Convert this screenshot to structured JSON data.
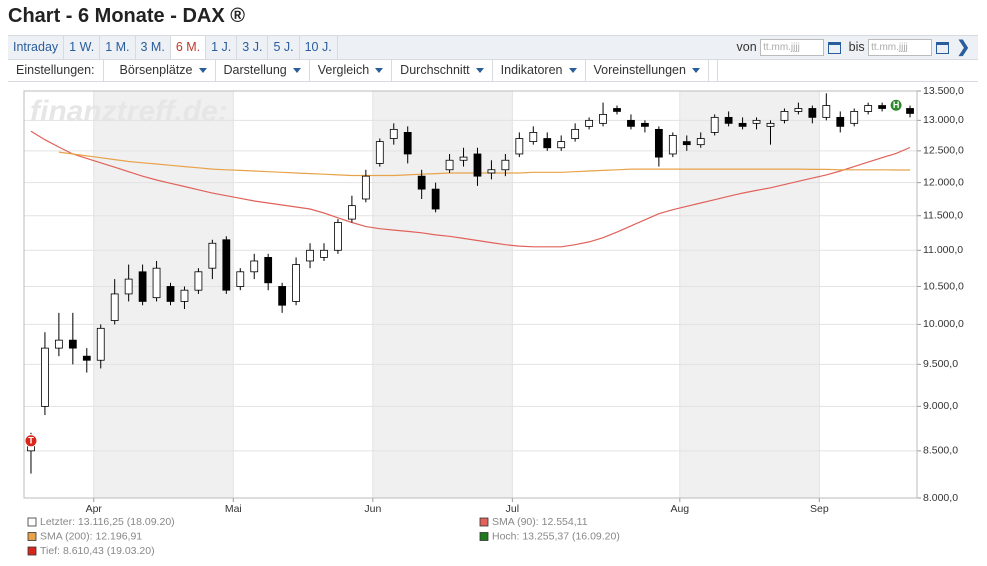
{
  "header": {
    "title": "Chart - 6 Monate - DAX ®"
  },
  "toolbar": {
    "periods": [
      "Intraday",
      "1 W.",
      "1 M.",
      "3 M.",
      "6 M.",
      "1 J.",
      "3 J.",
      "5 J.",
      "10 J."
    ],
    "active_period": "6 M.",
    "from_label": "von",
    "to_label": "bis",
    "date_placeholder": "tt.mm.jjjj",
    "settings_label": "Einstellungen:",
    "menus": [
      "Börsenplätze",
      "Darstellung",
      "Vergleich",
      "Durchschnitt",
      "Indikatoren",
      "Voreinstellungen"
    ]
  },
  "chart_data": {
    "type": "candlestick",
    "watermark": "finanztreff.de:",
    "categories": [
      null,
      null,
      null,
      null,
      null,
      "Apr",
      null,
      null,
      null,
      null,
      null,
      null,
      null,
      null,
      null,
      "Mai",
      null,
      null,
      null,
      null,
      null,
      null,
      null,
      null,
      null,
      "Jun",
      null,
      null,
      null,
      null,
      null,
      null,
      null,
      null,
      null,
      "Jul",
      null,
      null,
      null,
      null,
      null,
      null,
      null,
      null,
      null,
      null,
      null,
      "Aug",
      null,
      null,
      null,
      null,
      null,
      null,
      null,
      null,
      null,
      "Sep",
      null,
      null,
      null,
      null,
      null,
      null
    ],
    "open": [
      8500,
      9000,
      9700,
      9800,
      9600,
      9550,
      10050,
      10400,
      10700,
      10350,
      10500,
      10300,
      10450,
      10750,
      11150,
      10500,
      10700,
      10900,
      10500,
      10300,
      10850,
      10900,
      11000,
      11450,
      11750,
      12300,
      12700,
      12800,
      12100,
      11900,
      12200,
      12350,
      12450,
      12150,
      12200,
      12450,
      12650,
      12700,
      12550,
      12700,
      12900,
      12950,
      13200,
      13000,
      12950,
      12850,
      12450,
      12650,
      12600,
      12800,
      13050,
      12950,
      12950,
      12900,
      13000,
      13150,
      13200,
      13050,
      13050,
      12950,
      13150,
      13250,
      13200,
      13200
    ],
    "high": [
      8700,
      9900,
      10150,
      10150,
      9700,
      10000,
      10600,
      10800,
      10800,
      10850,
      10550,
      10500,
      10750,
      11150,
      11200,
      10750,
      10950,
      10950,
      10550,
      10900,
      11100,
      11100,
      11450,
      11800,
      12200,
      12700,
      12950,
      12900,
      12200,
      12000,
      12450,
      12550,
      12550,
      12350,
      12450,
      12800,
      12900,
      12800,
      12750,
      12950,
      13050,
      13300,
      13250,
      13100,
      13000,
      12900,
      12800,
      12750,
      12800,
      13100,
      13150,
      13050,
      13050,
      13000,
      13200,
      13300,
      13250,
      13460,
      13150,
      13200,
      13300,
      13300,
      13300,
      13250
    ],
    "low": [
      8255,
      8900,
      9600,
      9500,
      9400,
      9450,
      10000,
      10300,
      10250,
      10300,
      10250,
      10200,
      10400,
      10600,
      10400,
      10450,
      10600,
      10450,
      10150,
      10250,
      10750,
      10850,
      10950,
      11400,
      11700,
      12250,
      12600,
      12300,
      11750,
      11550,
      12150,
      12250,
      11950,
      12050,
      12100,
      12400,
      12600,
      12500,
      12500,
      12650,
      12850,
      12900,
      13100,
      12850,
      12800,
      12250,
      12400,
      12500,
      12550,
      12750,
      12900,
      12850,
      12850,
      12600,
      12950,
      13100,
      12950,
      13000,
      12800,
      12900,
      13100,
      13150,
      13150,
      13050
    ],
    "close": [
      8610.43,
      9700,
      9800,
      9700,
      9550,
      9950,
      10400,
      10600,
      10300,
      10750,
      10300,
      10450,
      10700,
      11100,
      10450,
      10700,
      10850,
      10550,
      10250,
      10800,
      11000,
      11000,
      11400,
      11650,
      12100,
      12650,
      12850,
      12450,
      11900,
      11600,
      12350,
      12400,
      12100,
      12200,
      12350,
      12700,
      12800,
      12550,
      12650,
      12850,
      13000,
      13100,
      13150,
      12900,
      12900,
      12400,
      12750,
      12600,
      12700,
      13050,
      12950,
      12900,
      13000,
      12950,
      13150,
      13200,
      13050,
      13250,
      12900,
      13150,
      13250,
      13200,
      13255.37,
      13116.25
    ],
    "up_color": "#ffffff",
    "down_color": "#000000",
    "series": [
      {
        "color": "#e0625a",
        "values": [
          12820,
          12680,
          12560,
          12450,
          12380,
          12310,
          12240,
          12170,
          12100,
          12040,
          11990,
          11940,
          11890,
          11840,
          11800,
          11760,
          11720,
          11690,
          11660,
          11630,
          11600,
          11540,
          11470,
          11400,
          11340,
          11310,
          11290,
          11270,
          11250,
          11220,
          11200,
          11170,
          11140,
          11110,
          11080,
          11060,
          11050,
          11050,
          11050,
          11080,
          11120,
          11180,
          11260,
          11350,
          11440,
          11530,
          11590,
          11640,
          11690,
          11740,
          11790,
          11840,
          11880,
          11920,
          11970,
          12020,
          12070,
          12120,
          12180,
          12250,
          12320,
          12390,
          12460,
          12554.11
        ]
      },
      {
        "color": "#e8a24a",
        "values": [
          null,
          null,
          12480,
          12450,
          12420,
          12390,
          12360,
          12330,
          12310,
          12290,
          12270,
          12250,
          12230,
          12210,
          12200,
          12190,
          12180,
          12170,
          12160,
          12150,
          12140,
          12130,
          12120,
          12110,
          12110,
          12110,
          12110,
          12120,
          12130,
          12140,
          12150,
          12150,
          12150,
          12150,
          12150,
          12150,
          12160,
          12160,
          12160,
          12170,
          12180,
          12190,
          12200,
          12210,
          12210,
          12210,
          12210,
          12210,
          12210,
          12210,
          12210,
          12210,
          12210,
          12210,
          12210,
          12210,
          12205,
          12205,
          12200,
          12200,
          12200,
          12200,
          12196.91,
          12196.91
        ]
      }
    ],
    "ylim": [
      8000,
      13500
    ],
    "yticks": [
      {
        "value": 8000,
        "label": "8.000,0"
      },
      {
        "value": 8500,
        "label": "8.500,0"
      },
      {
        "value": 9000,
        "label": "9.000,0"
      },
      {
        "value": 9500,
        "label": "9.500,0"
      },
      {
        "value": 10000,
        "label": "10.000,0"
      },
      {
        "value": 10500,
        "label": "10.500,0"
      },
      {
        "value": 11000,
        "label": "11.000,0"
      },
      {
        "value": 11500,
        "label": "11.500,0"
      },
      {
        "value": 12000,
        "label": "12.000,0"
      },
      {
        "value": 12500,
        "label": "12.500,0"
      },
      {
        "value": 13000,
        "label": "13.000,0"
      },
      {
        "value": 13500,
        "label": "13.500,0"
      }
    ],
    "log_scale": true,
    "grid": true,
    "shade_alternate_months": true,
    "markers": [
      {
        "label": "T",
        "color": "#d9261c",
        "at": "min"
      },
      {
        "label": "H",
        "color": "#2f8a2f",
        "at": "max"
      }
    ],
    "legend": [
      {
        "text": "Letzter: 13.116,25 (18.09.20)",
        "color": "#ffffff"
      },
      {
        "text": "SMA (90): 12.554,11",
        "color": "#e0625a"
      },
      {
        "text": "SMA (200): 12.196,91",
        "color": "#e8a24a"
      },
      {
        "text": "Hoch: 13.255,37 (16.09.20)",
        "color": "#1f7a1f"
      },
      {
        "text": "Tief: 8.610,43 (19.03.20)",
        "color": "#d9261c"
      }
    ]
  }
}
